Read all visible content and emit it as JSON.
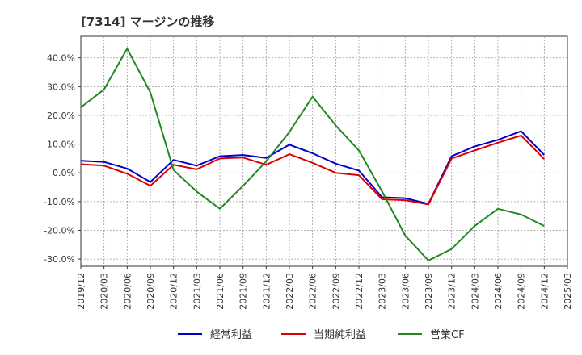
{
  "chart_data": {
    "type": "line",
    "title": "[7314]  マージンの推移",
    "xlabel": "",
    "ylabel": "",
    "x": [
      "2019/12",
      "2020/03",
      "2020/06",
      "2020/09",
      "2020/12",
      "2021/03",
      "2021/06",
      "2021/09",
      "2021/12",
      "2022/03",
      "2022/06",
      "2022/09",
      "2022/12",
      "2023/03",
      "2023/06",
      "2023/09",
      "2023/12",
      "2024/03",
      "2024/06",
      "2024/09",
      "2024/12",
      "2025/03"
    ],
    "ylim": [
      -32.5,
      47.5
    ],
    "yticks": [
      -30,
      -20,
      -10,
      0,
      10,
      20,
      30,
      40
    ],
    "ytick_labels": [
      "-30.0%",
      "-20.0%",
      "-10.0%",
      "0.0%",
      "10.0%",
      "20.0%",
      "30.0%",
      "40.0%"
    ],
    "grid": true,
    "legend_position": "bottom",
    "series": [
      {
        "name": "経常利益",
        "color": "#0000cc",
        "values": [
          4.2,
          3.8,
          1.5,
          -3.2,
          4.5,
          2.5,
          5.8,
          6.2,
          5.2,
          9.8,
          6.8,
          3.2,
          0.8,
          -8.5,
          -8.8,
          -10.8,
          5.8,
          9.2,
          11.5,
          14.5,
          6.2,
          null
        ]
      },
      {
        "name": "当期純利益",
        "color": "#dd0000",
        "values": [
          3.0,
          2.5,
          -0.3,
          -4.5,
          2.8,
          1.2,
          5.0,
          5.3,
          2.8,
          6.5,
          3.5,
          0.0,
          -0.8,
          -9.2,
          -9.5,
          -11.0,
          5.0,
          7.8,
          10.5,
          13.0,
          4.8,
          null
        ]
      },
      {
        "name": "営業CF",
        "color": "#228822",
        "values": [
          22.8,
          29.0,
          43.2,
          28.0,
          1.0,
          -6.5,
          -12.5,
          -4.5,
          4.0,
          14.2,
          26.5,
          16.5,
          7.8,
          -6.5,
          -21.8,
          -30.5,
          -26.5,
          -18.5,
          -12.5,
          -14.5,
          -18.5,
          null
        ]
      }
    ]
  }
}
